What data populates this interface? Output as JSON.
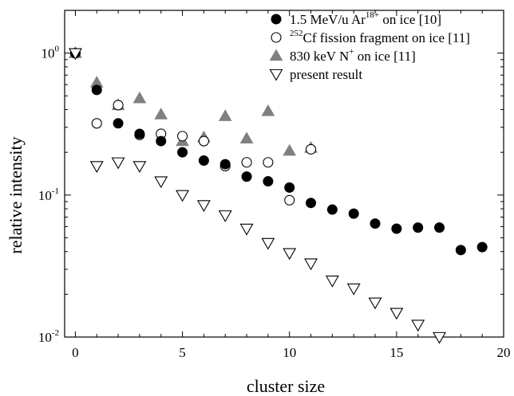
{
  "chart_data": {
    "type": "scatter",
    "title": "",
    "xlabel": "cluster size",
    "ylabel": "relative intensity",
    "xlim": [
      -0.5,
      20
    ],
    "ylog": true,
    "ylim": [
      0.01,
      2
    ],
    "xticks": [
      0,
      5,
      10,
      15,
      20
    ],
    "xtick_labels": [
      "0",
      "5",
      "10",
      "15",
      "20"
    ],
    "yticks": [
      0.01,
      0.1,
      1
    ],
    "ytick_labels": [
      {
        "base": "10",
        "exp": "-2"
      },
      {
        "base": "10",
        "exp": "-1"
      },
      {
        "base": "10",
        "exp": "0"
      }
    ],
    "grid": false,
    "legend_position": "top-right",
    "series": [
      {
        "name": "1.5 MeV/u Ar18+ on ice [10]",
        "legend_parts": {
          "pre": "1.5 MeV/u Ar",
          "sup": "18+",
          "post": " on ice [10]"
        },
        "marker": "filled-circle",
        "color": "#000000",
        "x": [
          0,
          1,
          2,
          3,
          4,
          5,
          6,
          7,
          8,
          9,
          10,
          11,
          12,
          13,
          14,
          15,
          16,
          17,
          18,
          19
        ],
        "y": [
          1.0,
          0.55,
          0.32,
          0.27,
          0.24,
          0.2,
          0.175,
          0.165,
          0.135,
          0.125,
          0.113,
          0.088,
          0.079,
          0.074,
          0.063,
          0.058,
          0.059,
          0.059,
          0.041,
          0.043
        ]
      },
      {
        "name": "252Cf fission fragment on ice [11]",
        "legend_parts": {
          "pre": "",
          "sup": "252",
          "post": "Cf fission fragment on ice [11]"
        },
        "marker": "open-circle",
        "color": "#000000",
        "x": [
          0,
          1,
          2,
          3,
          4,
          5,
          6,
          7,
          8,
          9,
          10,
          11
        ],
        "y": [
          1.0,
          0.32,
          0.43,
          0.265,
          0.27,
          0.26,
          0.24,
          0.16,
          0.17,
          0.17,
          0.092,
          0.21
        ]
      },
      {
        "name": "830 keV N+ on ice [11]",
        "legend_parts": {
          "pre": "830 keV N",
          "sup": "+",
          "post": " on ice [11]"
        },
        "marker": "filled-triangle-up",
        "color": "#808080",
        "x": [
          0,
          1,
          2,
          3,
          4,
          5,
          6,
          7,
          8,
          9,
          10,
          11
        ],
        "y": [
          1.0,
          0.62,
          0.43,
          0.48,
          0.37,
          0.24,
          0.255,
          0.36,
          0.25,
          0.39,
          0.205,
          0.215
        ]
      },
      {
        "name": "present result",
        "legend_parts": {
          "pre": "present result",
          "sup": "",
          "post": ""
        },
        "marker": "open-triangle-down",
        "color": "#000000",
        "x": [
          0,
          1,
          2,
          3,
          4,
          5,
          6,
          7,
          8,
          9,
          10,
          11,
          12,
          13,
          14,
          15,
          16,
          17
        ],
        "y": [
          1.0,
          0.16,
          0.17,
          0.16,
          0.125,
          0.1,
          0.085,
          0.072,
          0.058,
          0.046,
          0.039,
          0.033,
          0.025,
          0.022,
          0.0175,
          0.0148,
          0.0122,
          0.01
        ]
      }
    ]
  }
}
